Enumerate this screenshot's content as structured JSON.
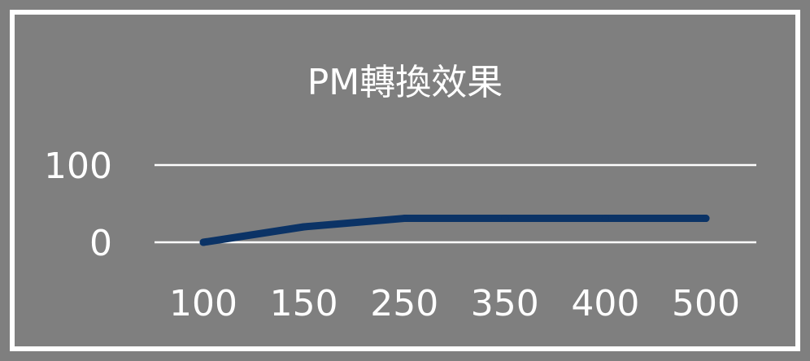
{
  "chart_data": {
    "type": "line",
    "title": "PM轉換效果",
    "xlabel": "",
    "ylabel": "",
    "categories": [
      "100",
      "150",
      "250",
      "350",
      "400",
      "500"
    ],
    "series": [
      {
        "values": [
          0,
          20,
          31,
          31,
          31,
          31
        ]
      }
    ],
    "yticks": [
      "0",
      "100"
    ],
    "ylim": [
      0,
      100
    ],
    "grid": true,
    "legend": "none",
    "colors": {
      "background": "#7f7f7f",
      "line": "#0b3366",
      "grid": "#ffffff",
      "text": "#ffffff",
      "frame": "#ffffff"
    }
  }
}
